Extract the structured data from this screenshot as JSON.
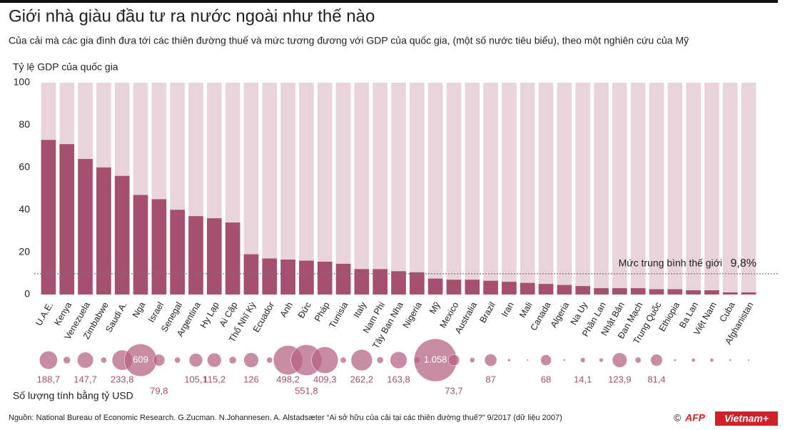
{
  "chart_data": {
    "type": "bar",
    "title": "Giới nhà giàu đầu tư ra nước ngoài như thế nào",
    "subtitle": "Của cải mà các gia đình đưa tới các thiên đường thuế và mức tương đương với GDP của quốc gia, (một số nước tiêu biểu), theo một nghiên cứu của Mỹ",
    "y_label": "Tỷ lệ GDP của quốc gia",
    "categories": [
      "U.A.E.",
      "Kenya",
      "Venezuela",
      "Zimbabwe",
      "Saudi A.",
      "Nga",
      "Israel",
      "Senegal",
      "Argentina",
      "Hy Lạp",
      "Ai Cập",
      "Thổ Nhĩ Kỳ",
      "Ecuador",
      "Anh",
      "Đức",
      "Pháp",
      "Tunisia",
      "Italy",
      "Nam Phi",
      "Tây Ban Nha",
      "Nigeria",
      "Mỹ",
      "Mexico",
      "Australia",
      "Brazil",
      "Iran",
      "Mali",
      "Canada",
      "Algeria",
      "Na Uy",
      "Phần Lan",
      "Nhật Bản",
      "Đan Mạch",
      "Trung Quốc",
      "Ethiopia",
      "Ba Lan",
      "Việt Nam",
      "Cuba",
      "Afghanistan"
    ],
    "values": [
      73,
      71,
      64,
      60,
      56,
      47,
      45,
      40,
      37,
      36,
      34,
      19,
      17,
      16.5,
      16,
      15.5,
      14.5,
      12,
      12,
      11,
      10.5,
      7.5,
      7,
      7,
      6.5,
      6,
      5.5,
      5,
      4.5,
      4,
      3,
      3,
      3,
      2.5,
      2.5,
      2,
      2,
      1,
      1
    ],
    "color": "#a5506f",
    "track_color": "#e9d4dc",
    "ylim": [
      0,
      100
    ],
    "yticks": [
      0,
      20,
      40,
      60,
      80,
      100
    ],
    "grid": false,
    "reference": {
      "label": "Mức trung bình thế giới",
      "value": 9.8,
      "value_label": "9,8%"
    },
    "bubbles": {
      "label": "Số lượng tính bằng tỷ USD",
      "color": "#b4617f",
      "values": [
        188.7,
        30,
        147.7,
        20,
        233.8,
        609,
        79.8,
        20,
        105.1,
        115.2,
        30,
        126,
        20,
        498.2,
        551.8,
        409.3,
        20,
        262.2,
        25,
        163.8,
        20,
        1058,
        73.7,
        15,
        87,
        5,
        2,
        68,
        3,
        14.1,
        10,
        123.9,
        20,
        81.4,
        3,
        8,
        8,
        3,
        2
      ],
      "value_labels": [
        "188,7",
        null,
        "147,7",
        null,
        "233,8",
        "609",
        "79,8",
        null,
        "105,1",
        "115,2",
        null,
        "126",
        null,
        "498,2",
        "551,8",
        "409,3",
        null,
        "262,2",
        null,
        "163,8",
        null,
        "1.058",
        "73,7",
        null,
        "87",
        null,
        null,
        "68",
        null,
        "14,1",
        null,
        "123,9",
        null,
        "81,4",
        null,
        null,
        null,
        null,
        null
      ]
    },
    "source": "Nguồn:  National Bureau of Economic Research. G.Zucman. N.Johannesen. A. Alstadsæter  “Ai sở hữu của cải tại các thiên đường thuế?”  9/2017 (dữ liệu 2007)",
    "credits": [
      "©",
      "AFP",
      "Vietnam+"
    ]
  }
}
